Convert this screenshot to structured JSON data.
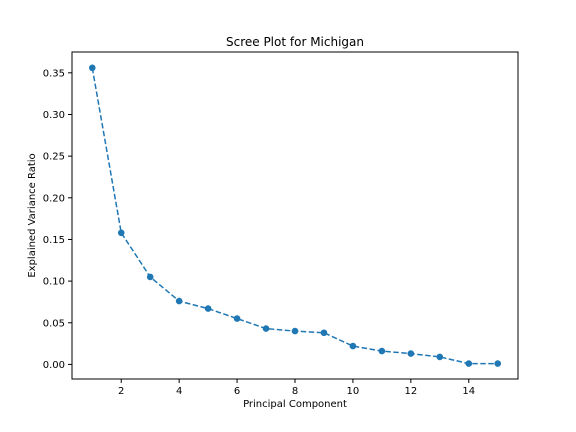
{
  "chart_data": {
    "type": "line",
    "title": "Scree Plot for Michigan",
    "xlabel": "Principal Component",
    "ylabel": "Explained Variance Ratio",
    "x": [
      1,
      2,
      3,
      4,
      5,
      6,
      7,
      8,
      9,
      10,
      11,
      12,
      13,
      14,
      15
    ],
    "series": [
      {
        "values": [
          0.356,
          0.158,
          0.105,
          0.076,
          0.067,
          0.055,
          0.043,
          0.04,
          0.038,
          0.022,
          0.016,
          0.013,
          0.009,
          0.001,
          0.001
        ]
      }
    ],
    "xlim": [
      0.3,
      15.7
    ],
    "ylim": [
      -0.0175,
      0.375
    ],
    "xticks": [
      2,
      4,
      6,
      8,
      10,
      12,
      14
    ],
    "xtick_labels": [
      "2",
      "4",
      "6",
      "8",
      "10",
      "12",
      "14"
    ],
    "yticks": [
      0.0,
      0.05,
      0.1,
      0.15,
      0.2,
      0.25,
      0.3,
      0.35
    ],
    "ytick_labels": [
      "0.00",
      "0.05",
      "0.10",
      "0.15",
      "0.20",
      "0.25",
      "0.30",
      "0.35"
    ],
    "grid": false,
    "line_style": "dashed",
    "marker": "circle",
    "color": "#1f77b4"
  }
}
